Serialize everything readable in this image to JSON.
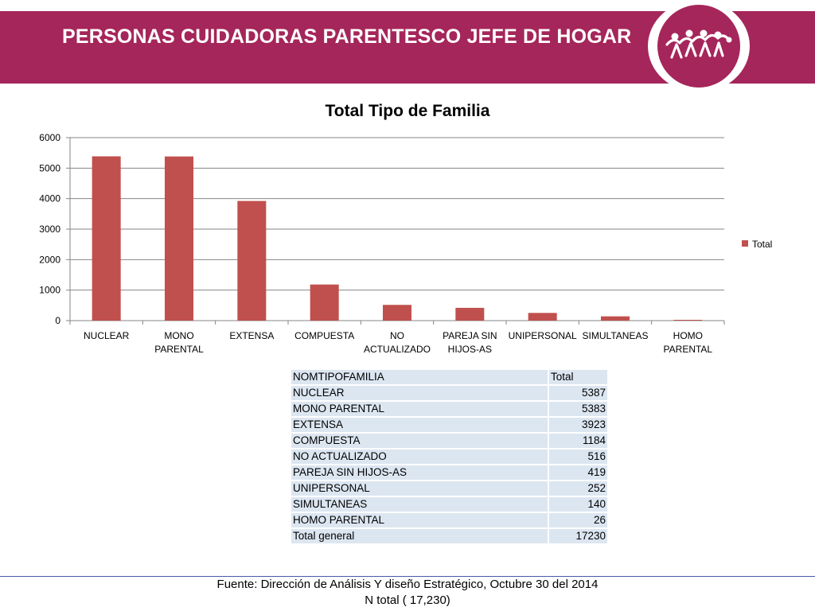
{
  "header": {
    "title": "PERSONAS  CUIDADORAS PARENTESCO JEFE DE HOGAR",
    "band_color": "#a5265a",
    "logo_icon": "people-holding-hands-logo"
  },
  "chart_data": {
    "type": "bar",
    "title": "Total Tipo de Familia",
    "categories": [
      [
        "NUCLEAR"
      ],
      [
        "MONO",
        "PARENTAL"
      ],
      [
        "EXTENSA"
      ],
      [
        "COMPUESTA"
      ],
      [
        "NO",
        "ACTUALIZADO"
      ],
      [
        "PAREJA SIN",
        "HIJOS-AS"
      ],
      [
        "UNIPERSONAL"
      ],
      [
        "SIMULTANEAS"
      ],
      [
        "HOMO",
        "PARENTAL"
      ]
    ],
    "series": [
      {
        "name": "Total",
        "values": [
          5387,
          5383,
          3923,
          1184,
          516,
          419,
          252,
          140,
          26
        ],
        "color": "#c0504d"
      }
    ],
    "ylim": [
      0,
      6000
    ],
    "yticks": [
      0,
      1000,
      2000,
      3000,
      4000,
      5000,
      6000
    ],
    "grid": true,
    "legend": "right"
  },
  "table": {
    "header": [
      "NOMTIPOFAMILIA",
      "Total"
    ],
    "rows": [
      [
        "NUCLEAR",
        "5387"
      ],
      [
        "MONO PARENTAL",
        "5383"
      ],
      [
        "EXTENSA",
        "3923"
      ],
      [
        "COMPUESTA",
        "1184"
      ],
      [
        "NO ACTUALIZADO",
        "516"
      ],
      [
        "PAREJA SIN HIJOS-AS",
        "419"
      ],
      [
        "UNIPERSONAL",
        "252"
      ],
      [
        "SIMULTANEAS",
        "140"
      ],
      [
        "HOMO PARENTAL",
        "26"
      ],
      [
        "Total general",
        "17230"
      ]
    ]
  },
  "footer": {
    "source": "Fuente: Dirección de Análisis Y diseño Estratégico, Octubre 30 del 2014",
    "total": "N total ( 17,230)"
  }
}
